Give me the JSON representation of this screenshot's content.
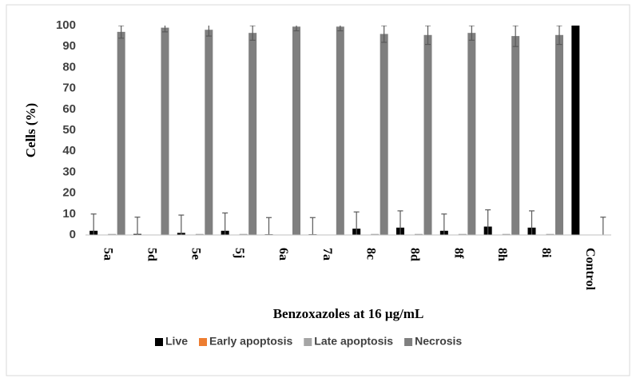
{
  "chart_data": {
    "type": "bar",
    "y_label": "Cells (%)",
    "x_label": "Benzoxazoles at 16 μg/mL",
    "categories": [
      "5a",
      "5d",
      "5e",
      "5j",
      "6a",
      "7a",
      "8c",
      "8d",
      "8f",
      "8h",
      "8i",
      "Control"
    ],
    "series": [
      {
        "name": "Live",
        "color": "#000000",
        "values": [
          2,
          0.5,
          1,
          2,
          0.3,
          0.3,
          3,
          3.5,
          2,
          4,
          3.5,
          100
        ],
        "errors": [
          8,
          8,
          8.5,
          8.5,
          8,
          8,
          8,
          8,
          8,
          8,
          8,
          0
        ]
      },
      {
        "name": "Early apoptosis",
        "color": "#ed7d31",
        "values": [
          0,
          0,
          0,
          0,
          0,
          0,
          0,
          0,
          0,
          0,
          0,
          0
        ]
      },
      {
        "name": "Late apoptosis",
        "color": "#a5a5a5",
        "values": [
          0.5,
          0,
          0.5,
          0.5,
          0,
          0,
          0.5,
          0.5,
          0.5,
          0.5,
          0.5,
          0
        ]
      },
      {
        "name": "Necrosis",
        "color": "#7f7f7f",
        "values": [
          97,
          99,
          98,
          96.5,
          99.5,
          99.5,
          96,
          95.5,
          96.5,
          95,
          95.5,
          0
        ],
        "errors": [
          3,
          2,
          3,
          3.5,
          2,
          2,
          4,
          4.5,
          3.5,
          5,
          4.5,
          8.5
        ]
      }
    ],
    "ylim": [
      0,
      100
    ],
    "yticks": [
      0,
      10,
      20,
      30,
      40,
      50,
      60,
      70,
      80,
      90,
      100
    ],
    "grid": false,
    "legend": "bottom"
  }
}
